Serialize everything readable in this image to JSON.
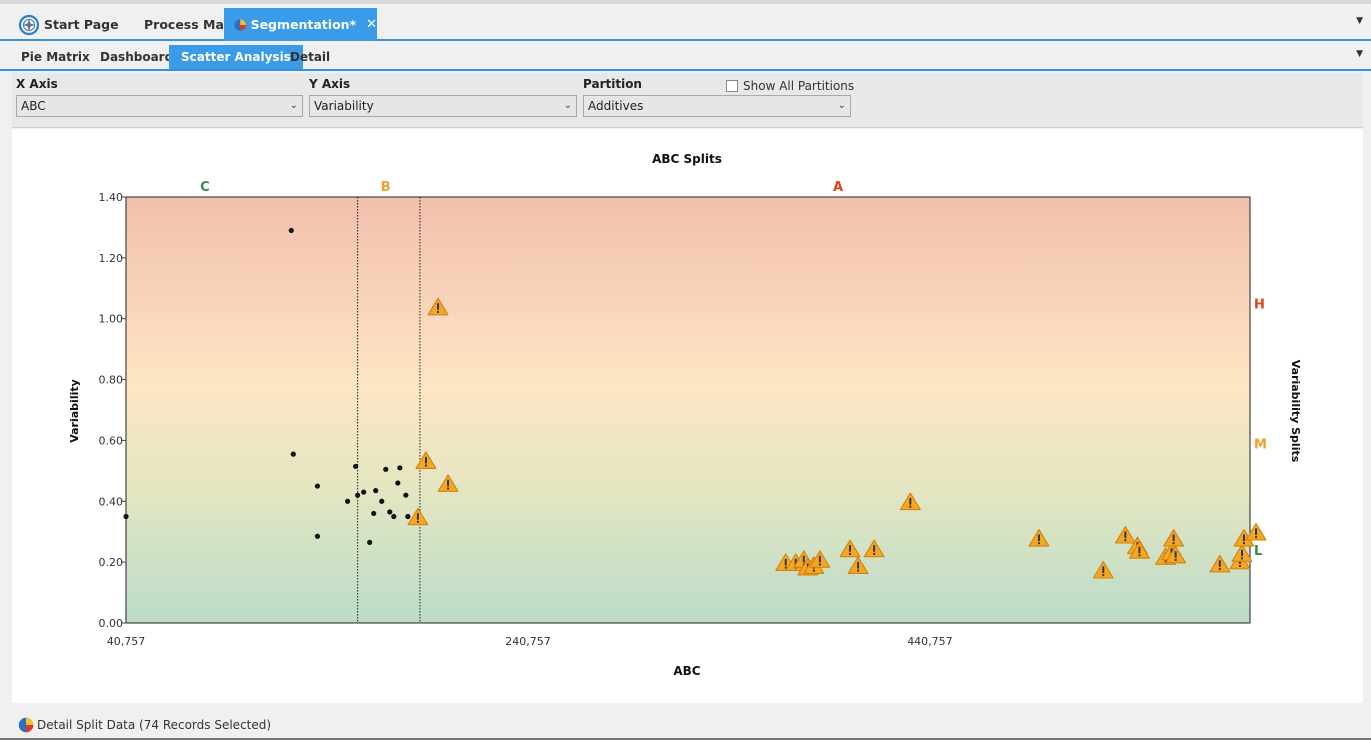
{
  "doc_tabs": [
    {
      "label": "Start Page",
      "icon": "compass-icon",
      "active": false
    },
    {
      "label": "Process Map",
      "active": false
    },
    {
      "label": "Segmentation*",
      "icon": "pie-chart-icon",
      "active": true
    }
  ],
  "view_tabs": [
    "Pie Matrix",
    "Dashboard",
    "Scatter Analysis",
    "Detail"
  ],
  "active_view_tab": "Scatter Analysis",
  "filters": {
    "x_axis": {
      "label": "X Axis",
      "value": "ABC"
    },
    "y_axis": {
      "label": "Y Axis",
      "value": "Variability"
    },
    "partition": {
      "label": "Partition",
      "value": "Additives"
    },
    "show_all_partitions": {
      "label": "Show All Partitions",
      "checked": false
    }
  },
  "chart_data": {
    "type": "scatter",
    "title": "ABC Splits",
    "xlabel": "ABC",
    "ylabel": "Variability",
    "right_label": "Variability Splits",
    "xlim": [
      40757,
      600000
    ],
    "ylim": [
      0,
      1.4
    ],
    "x_ticks": [
      "40,757",
      "240,757",
      "440,757"
    ],
    "x_tick_values": [
      40757,
      240757,
      440757
    ],
    "y_ticks": [
      "0.00",
      "0.20",
      "0.40",
      "0.60",
      "0.80",
      "1.00",
      "1.20",
      "1.40"
    ],
    "y_tick_values": [
      0,
      0.2,
      0.4,
      0.6,
      0.8,
      1.0,
      1.2,
      1.4
    ],
    "abc_splits": [
      {
        "label": "C",
        "color": "#2e8b4e",
        "x": 80000
      },
      {
        "label": "B",
        "color": "#f0a030",
        "x": 170000
      },
      {
        "label": "A",
        "color": "#d9441c",
        "x": 395000
      }
    ],
    "split_lines_x": [
      156000,
      187000
    ],
    "variability_splits": [
      {
        "label": "H",
        "color": "#d9441c",
        "y": 1.05
      },
      {
        "label": "M",
        "color": "#f0a030",
        "y": 0.59
      },
      {
        "label": "L",
        "color": "#2e8b4e",
        "y": 0.24
      }
    ],
    "gradient_colors": [
      "#f3bfad",
      "#fde6c4",
      "#e4e6c1",
      "#bcdcc9"
    ],
    "series": [
      {
        "marker": "dot",
        "points": [
          [
            40757,
            0.35
          ],
          [
            123000,
            1.29
          ],
          [
            124000,
            0.555
          ],
          [
            136000,
            0.45
          ],
          [
            136000,
            0.285
          ],
          [
            151000,
            0.4
          ],
          [
            155000,
            0.515
          ],
          [
            156000,
            0.42
          ],
          [
            159000,
            0.43
          ],
          [
            162000,
            0.265
          ],
          [
            164000,
            0.36
          ],
          [
            165000,
            0.435
          ],
          [
            168000,
            0.4
          ],
          [
            170000,
            0.505
          ],
          [
            172000,
            0.365
          ],
          [
            174000,
            0.35
          ],
          [
            176000,
            0.46
          ],
          [
            177000,
            0.51
          ],
          [
            180000,
            0.42
          ],
          [
            181000,
            0.35
          ]
        ]
      },
      {
        "marker": "warning",
        "color": "#f5a623",
        "points": [
          [
            196000,
            1.04
          ],
          [
            190000,
            0.535
          ],
          [
            201000,
            0.46
          ],
          [
            186000,
            0.35
          ],
          [
            369000,
            0.2
          ],
          [
            374000,
            0.2
          ],
          [
            378000,
            0.21
          ],
          [
            380000,
            0.185
          ],
          [
            383000,
            0.19
          ],
          [
            386000,
            0.21
          ],
          [
            401000,
            0.245
          ],
          [
            405000,
            0.19
          ],
          [
            413000,
            0.245
          ],
          [
            431000,
            0.4
          ],
          [
            495000,
            0.28
          ],
          [
            527000,
            0.175
          ],
          [
            538000,
            0.29
          ],
          [
            544000,
            0.255
          ],
          [
            545000,
            0.24
          ],
          [
            558000,
            0.22
          ],
          [
            561000,
            0.235
          ],
          [
            562000,
            0.28
          ],
          [
            563000,
            0.225
          ],
          [
            585000,
            0.195
          ],
          [
            595000,
            0.205
          ],
          [
            596000,
            0.23
          ],
          [
            597000,
            0.28
          ],
          [
            603000,
            0.3
          ]
        ]
      }
    ]
  },
  "status": {
    "text": "Detail Split Data (74 Records Selected)"
  }
}
